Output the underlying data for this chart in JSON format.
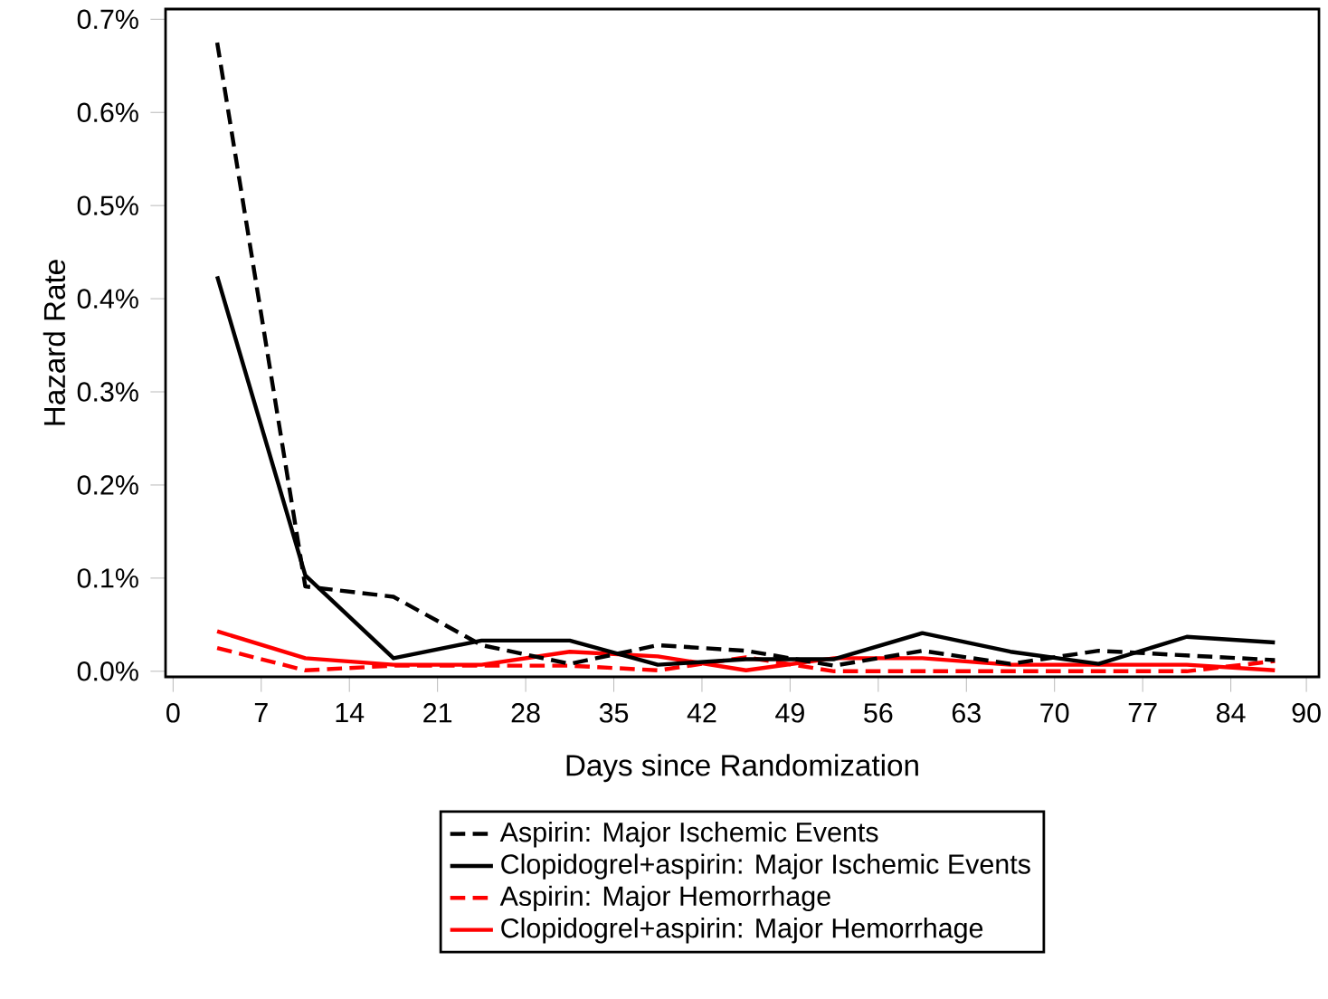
{
  "chart_data": {
    "type": "line",
    "xlabel": "Days since Randomization",
    "ylabel": "Hazard Rate",
    "x": [
      3.5,
      10.5,
      17.5,
      24.5,
      31.5,
      38.5,
      45.5,
      52.5,
      59.5,
      66.5,
      73.5,
      80.5,
      87.5
    ],
    "series": [
      {
        "name": "Aspirin: Major Ischemic Events",
        "color": "#000000",
        "line_style": "dashed",
        "values": [
          0.675,
          0.091,
          0.08,
          0.028,
          0.008,
          0.028,
          0.022,
          0.006,
          0.022,
          0.008,
          0.022,
          0.017,
          0.012
        ]
      },
      {
        "name": "Clopidogrel+aspirin: Major Ischemic Events",
        "color": "#000000",
        "line_style": "solid",
        "values": [
          0.424,
          0.103,
          0.014,
          0.033,
          0.033,
          0.007,
          0.013,
          0.013,
          0.041,
          0.021,
          0.008,
          0.037,
          0.031
        ]
      },
      {
        "name": "Aspirin: Major Hemorrhage",
        "color": "#ff0000",
        "line_style": "dashed",
        "values": [
          0.025,
          0.001,
          0.006,
          0.006,
          0.006,
          0.001,
          0.015,
          0.0,
          0.0,
          0.0,
          0.0,
          0.0,
          0.011
        ]
      },
      {
        "name": "Clopidogrel+aspirin: Major Hemorrhage",
        "color": "#ff0000",
        "line_style": "solid",
        "values": [
          0.043,
          0.014,
          0.007,
          0.007,
          0.021,
          0.016,
          0.001,
          0.014,
          0.014,
          0.007,
          0.007,
          0.007,
          0.001
        ]
      }
    ],
    "xlim": [
      -0.6,
      91
    ],
    "ylim": [
      -0.006,
      0.711
    ],
    "xticks": [
      0,
      7,
      14,
      21,
      28,
      35,
      42,
      49,
      56,
      63,
      70,
      77,
      84,
      90
    ],
    "yticks": [
      {
        "value": 0.0,
        "label": "0.0%"
      },
      {
        "value": 0.1,
        "label": "0.1%"
      },
      {
        "value": 0.2,
        "label": "0.2%"
      },
      {
        "value": 0.3,
        "label": "0.3%"
      },
      {
        "value": 0.4,
        "label": "0.4%"
      },
      {
        "value": 0.5,
        "label": "0.5%"
      },
      {
        "value": 0.6,
        "label": "0.6%"
      },
      {
        "value": 0.7,
        "label": "0.7%"
      }
    ],
    "grid": false,
    "legend": "bottom",
    "marker": "none"
  }
}
